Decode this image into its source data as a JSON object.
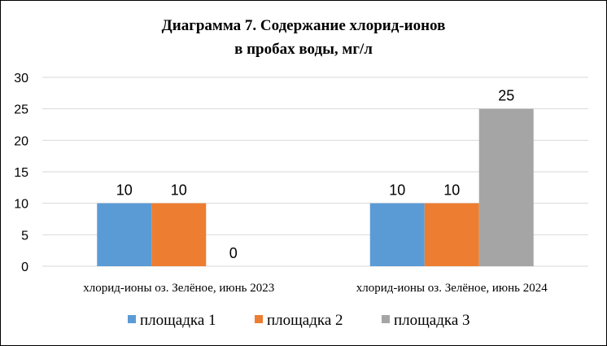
{
  "chart_data": {
    "type": "bar",
    "title_lines": [
      "Диаграмма 7. Содержание хлорид-ионов",
      "в пробах воды, мг/л"
    ],
    "categories": [
      "хлорид-ионы оз. Зелёное, июнь 2023",
      "хлорид-ионы оз. Зелёное, июнь 2024"
    ],
    "series": [
      {
        "name": "площадка 1",
        "values": [
          10,
          10
        ],
        "color": "#5B9BD5"
      },
      {
        "name": "площадка 2",
        "values": [
          10,
          10
        ],
        "color": "#ED7D31"
      },
      {
        "name": "площадка 3",
        "values": [
          0,
          25
        ],
        "color": "#A5A5A5"
      }
    ],
    "ylim": [
      0,
      30
    ],
    "yticks": [
      "0",
      "5",
      "10",
      "15",
      "20",
      "25",
      "30"
    ],
    "grid": true,
    "data_labels": true,
    "legend_position": "bottom"
  }
}
